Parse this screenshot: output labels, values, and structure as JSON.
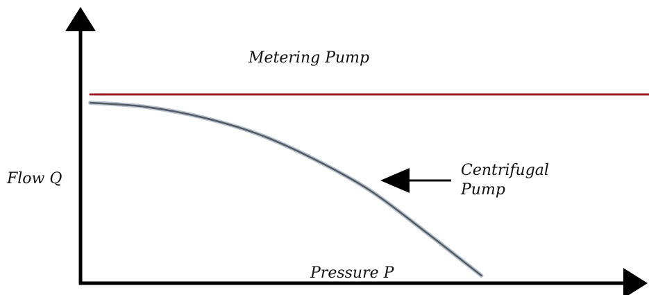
{
  "chart_data": {
    "type": "line",
    "xlabel": "Pressure P",
    "ylabel": "Flow Q",
    "xlim": [
      0,
      1
    ],
    "ylim": [
      0,
      1
    ],
    "grid": false,
    "series": [
      {
        "name": "Metering Pump",
        "color": "#a01a24",
        "x": [
          0,
          1
        ],
        "y": [
          0.88,
          0.88
        ]
      },
      {
        "name": "Centrifugal Pump",
        "label_lines": [
          "Centrifugal",
          "Pump"
        ],
        "color": "#555a62",
        "x": [
          0,
          0.1,
          0.2,
          0.3,
          0.4,
          0.5,
          0.6,
          0.7
        ],
        "y": [
          0.84,
          0.82,
          0.77,
          0.69,
          0.57,
          0.42,
          0.22,
          0.01
        ]
      }
    ]
  }
}
